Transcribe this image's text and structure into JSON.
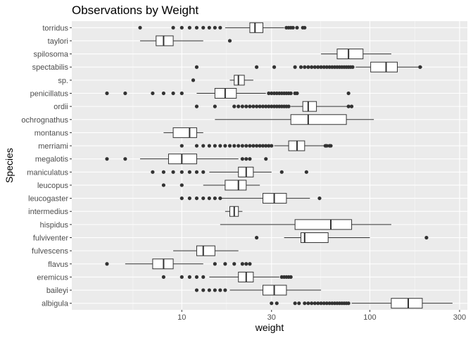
{
  "chart_data": {
    "type": "boxplot",
    "title": "Observations by Weight",
    "xlabel": "weight",
    "ylabel": "Species",
    "x_scale": "log10",
    "xlim": [
      2.6,
      330
    ],
    "x_ticks": [
      10,
      30,
      100,
      300
    ],
    "x_minor_ticks": [
      5.5,
      17.3,
      54.8,
      173.2
    ],
    "grid": true,
    "legend": "none",
    "colors": {
      "panel": "#ebebeb",
      "grid_major": "#ffffff",
      "box_fill": "#ffffff",
      "stroke": "#333333",
      "outlier": "#333333",
      "text_axis": "#4d4d4d"
    },
    "species": [
      {
        "name": "torridus",
        "whisker_low": 17,
        "q1": 23,
        "median": 24.5,
        "q3": 27,
        "whisker_high": 35,
        "outliers": [
          6,
          9,
          10,
          11,
          12,
          13,
          14,
          15,
          16,
          36,
          37,
          38,
          39,
          41,
          44,
          45
        ]
      },
      {
        "name": "taylori",
        "whisker_low": 6,
        "q1": 7.3,
        "median": 8,
        "q3": 9,
        "whisker_high": 13,
        "outliers": [
          18
        ]
      },
      {
        "name": "spilosoma",
        "whisker_low": 55,
        "q1": 67,
        "median": 77,
        "q3": 92,
        "whisker_high": 130,
        "outliers": []
      },
      {
        "name": "spectabilis",
        "whisker_low": 84,
        "q1": 101,
        "median": 122,
        "q3": 140,
        "whisker_high": 190,
        "outliers": [
          12,
          25,
          31,
          40,
          43,
          45,
          47,
          49,
          51,
          53,
          55,
          57,
          59,
          61,
          63,
          65,
          67,
          69,
          71,
          73,
          75,
          77,
          79,
          81,
          185
        ]
      },
      {
        "name": "sp.",
        "whisker_low": 18,
        "q1": 19,
        "median": 20,
        "q3": 21.5,
        "whisker_high": 24,
        "outliers": [
          11.5
        ]
      },
      {
        "name": "penicillatus",
        "whisker_low": 12,
        "q1": 15,
        "median": 17,
        "q3": 19.5,
        "whisker_high": 28,
        "outliers": [
          4,
          5,
          7,
          8,
          9,
          10,
          29,
          30,
          31,
          32,
          33,
          34,
          35,
          36,
          37,
          38,
          40,
          41,
          77
        ]
      },
      {
        "name": "ordii",
        "whisker_low": 38,
        "q1": 44,
        "median": 47,
        "q3": 52,
        "whisker_high": 76,
        "outliers": [
          12,
          15,
          19,
          20,
          21,
          22,
          23,
          24,
          25,
          26,
          27,
          28,
          29,
          30,
          31,
          32,
          33,
          34,
          35,
          36,
          37,
          77,
          80
        ]
      },
      {
        "name": "ochrognathus",
        "whisker_low": 15,
        "q1": 38,
        "median": 47,
        "q3": 75,
        "whisker_high": 105,
        "outliers": []
      },
      {
        "name": "montanus",
        "whisker_low": 8,
        "q1": 9,
        "median": 11,
        "q3": 12,
        "whisker_high": 13,
        "outliers": []
      },
      {
        "name": "merriami",
        "whisker_low": 31,
        "q1": 37,
        "median": 41,
        "q3": 45,
        "whisker_high": 60,
        "outliers": [
          10,
          12,
          13,
          14,
          15,
          16,
          17,
          18,
          19,
          20,
          21,
          22,
          23,
          24,
          25,
          26,
          27,
          28,
          29,
          30,
          58,
          59,
          61,
          62
        ]
      },
      {
        "name": "megalotis",
        "whisker_low": 6,
        "q1": 8.5,
        "median": 10,
        "q3": 12,
        "whisker_high": 20,
        "outliers": [
          4,
          5,
          21,
          22,
          23,
          28
        ]
      },
      {
        "name": "maniculatus",
        "whisker_low": 14,
        "q1": 20,
        "median": 22,
        "q3": 24,
        "whisker_high": 30,
        "outliers": [
          7,
          8,
          9,
          10,
          11,
          12,
          13,
          34,
          46
        ]
      },
      {
        "name": "leucopus",
        "whisker_low": 13,
        "q1": 17,
        "median": 20,
        "q3": 22,
        "whisker_high": 26,
        "outliers": [
          8,
          10
        ]
      },
      {
        "name": "leucogaster",
        "whisker_low": 16,
        "q1": 27,
        "median": 31,
        "q3": 36,
        "whisker_high": 48,
        "outliers": [
          10,
          11,
          12,
          13,
          14,
          15,
          16,
          54
        ]
      },
      {
        "name": "intermedius",
        "whisker_low": 17,
        "q1": 18,
        "median": 19,
        "q3": 20,
        "whisker_high": 21,
        "outliers": []
      },
      {
        "name": "hispidus",
        "whisker_low": 16,
        "q1": 40,
        "median": 62,
        "q3": 80,
        "whisker_high": 130,
        "outliers": []
      },
      {
        "name": "fulviventer",
        "whisker_low": 35,
        "q1": 43,
        "median": 45,
        "q3": 60,
        "whisker_high": 100,
        "outliers": [
          25,
          200
        ]
      },
      {
        "name": "fulvescens",
        "whisker_low": 9,
        "q1": 12,
        "median": 13,
        "q3": 15,
        "whisker_high": 20,
        "outliers": []
      },
      {
        "name": "flavus",
        "whisker_low": 5,
        "q1": 7,
        "median": 8,
        "q3": 9,
        "whisker_high": 13,
        "outliers": [
          4,
          15,
          17,
          19,
          21,
          22,
          23
        ]
      },
      {
        "name": "eremicus",
        "whisker_low": 14,
        "q1": 20,
        "median": 22,
        "q3": 24,
        "whisker_high": 33,
        "outliers": [
          8,
          10,
          11,
          12,
          13,
          34,
          35,
          36,
          37,
          38
        ]
      },
      {
        "name": "baileyi",
        "whisker_low": 18,
        "q1": 27,
        "median": 31,
        "q3": 36,
        "whisker_high": 55,
        "outliers": [
          12,
          13,
          14,
          15,
          16,
          17
        ]
      },
      {
        "name": "albigula",
        "whisker_low": 80,
        "q1": 130,
        "median": 160,
        "q3": 190,
        "whisker_high": 275,
        "outliers": [
          30,
          32,
          40,
          42,
          45,
          47,
          49,
          51,
          53,
          55,
          57,
          59,
          61,
          63,
          65,
          67,
          69,
          71,
          73,
          75,
          77
        ]
      }
    ]
  }
}
